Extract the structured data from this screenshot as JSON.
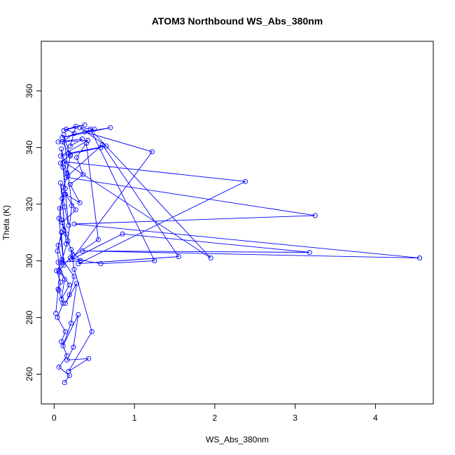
{
  "chart_data": {
    "type": "scatter",
    "title": "ATOM3 Northbound WS_Abs_380nm",
    "xlabel": "WS_Abs_380nm",
    "ylabel": "Theta (K)",
    "xlim": [
      -0.16,
      4.72
    ],
    "ylim": [
      249.5,
      377.5
    ],
    "xticks": [
      0,
      1,
      2,
      3,
      4
    ],
    "xtick_labels": [
      "0",
      "1",
      "2",
      "3",
      "4"
    ],
    "yticks": [
      260,
      280,
      300,
      320,
      340,
      360
    ],
    "ytick_labels": [
      "260",
      "280",
      "300",
      "320",
      "340",
      "360"
    ],
    "grid": false,
    "legend": "none",
    "colors": {
      "series": "#0000ff",
      "axis": "#000000",
      "background": "#ffffff"
    },
    "series": [
      {
        "style": "line+open-circle",
        "x": [
          0.02,
          0.05,
          0.07,
          0.04,
          0.09,
          0.12,
          0.06,
          0.1,
          0.15,
          0.08,
          0.13,
          0.18,
          0.11,
          0.14,
          0.09,
          0.16,
          0.2,
          0.12,
          0.22,
          0.17,
          0.1,
          0.25,
          0.19,
          0.14,
          0.28,
          0.21,
          0.11,
          0.3,
          0.24,
          0.16,
          0.43,
          0.18,
          0.47,
          0.25,
          0.21,
          0.33,
          0.05,
          0.13,
          0.09,
          0.19,
          0.06,
          0.23,
          0.15,
          0.1,
          0.27,
          0.14,
          0.32,
          0.2,
          0.36,
          0.28,
          0.4,
          0.55,
          0.2,
          0.58,
          1.25,
          0.45,
          1.95,
          0.12,
          2.38,
          0.3,
          1.55,
          0.6,
          0.15,
          3.25,
          0.25,
          4.55,
          0.35,
          3.18,
          0.85,
          0.22,
          1.22,
          0.38,
          0.7,
          0.1,
          0.5,
          0.32,
          0.65,
          0.18,
          0.58,
          0.08,
          0.42,
          0.05,
          0.35,
          0.2,
          0.27,
          0.12,
          0.38,
          0.15,
          0.25,
          0.1,
          0.2,
          0.08,
          0.17,
          0.11,
          0.13,
          0.07,
          0.09,
          0.12,
          0.05,
          0.1,
          0.03,
          0.08,
          0.06,
          0.11,
          0.04,
          0.14,
          0.09,
          0.16,
          0.06,
          0.19,
          0.13
        ],
        "y": [
          281.5,
          290.0,
          296.0,
          303.5,
          310.0,
          298.5,
          315.0,
          322.0,
          306.0,
          327.5,
          319.0,
          312.5,
          333.0,
          325.5,
          339.5,
          331.0,
          337.0,
          344.5,
          319.5,
          307.0,
          300.5,
          294.5,
          288.0,
          285.0,
          292.0,
          278.0,
          270.0,
          281.0,
          269.5,
          265.0,
          265.5,
          261.0,
          275.0,
          297.0,
          304.0,
          300.0,
          299.5,
          293.5,
          286.5,
          291.5,
          296.5,
          302.0,
          309.5,
          313.5,
          318.0,
          323.5,
          320.5,
          327.0,
          330.5,
          336.5,
          341.5,
          307.5,
          301.0,
          299.0,
          300.0,
          346.5,
          301.0,
          335.0,
          328.0,
          299.0,
          301.5,
          341.0,
          329.5,
          316.0,
          313.0,
          301.0,
          303.5,
          303.0,
          309.5,
          300.5,
          338.5,
          345.5,
          347.0,
          343.5,
          346.5,
          347.0,
          340.5,
          338.0,
          340.0,
          337.0,
          342.5,
          342.0,
          343.0,
          340.5,
          347.5,
          346.0,
          348.0,
          346.5,
          345.0,
          342.0,
          337.5,
          334.5,
          330.0,
          326.0,
          323.5,
          318.5,
          314.5,
          311.0,
          305.5,
          299.5,
          296.5,
          292.5,
          289.5,
          285.0,
          280.0,
          275.0,
          271.5,
          266.5,
          262.5,
          259.5,
          257.0
        ]
      }
    ]
  }
}
